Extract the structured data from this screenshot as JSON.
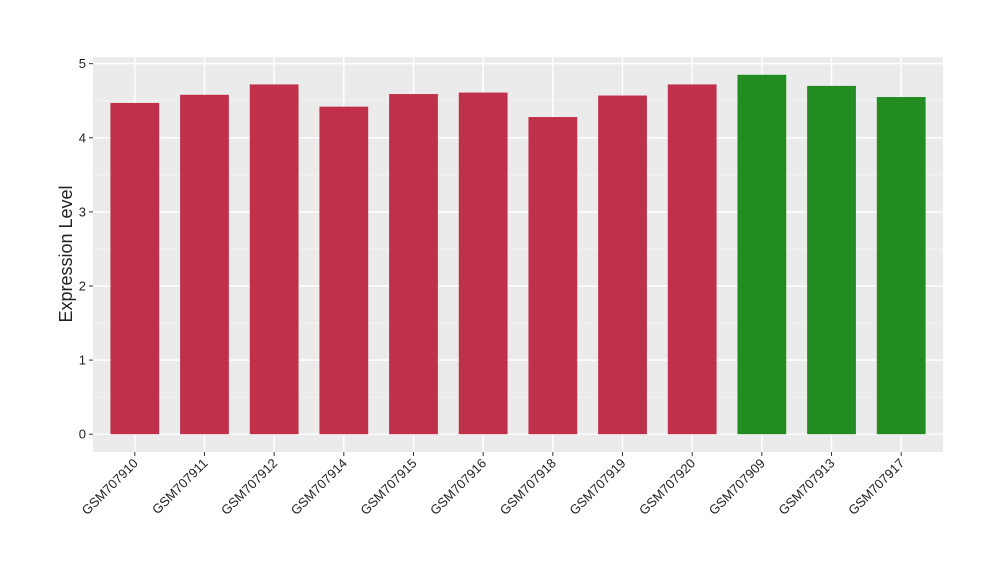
{
  "chart_data": {
    "type": "bar",
    "y_label": "Expression Level",
    "categories": [
      "GSM707910",
      "GSM707911",
      "GSM707912",
      "GSM707914",
      "GSM707915",
      "GSM707916",
      "GSM707918",
      "GSM707919",
      "GSM707920",
      "GSM707909",
      "GSM707913",
      "GSM707917"
    ],
    "values": [
      4.47,
      4.58,
      4.72,
      4.42,
      4.59,
      4.61,
      4.28,
      4.57,
      4.72,
      4.85,
      4.7,
      4.55
    ],
    "colors": [
      "#c0304a",
      "#c0304a",
      "#c0304a",
      "#c0304a",
      "#c0304a",
      "#c0304a",
      "#c0304a",
      "#c0304a",
      "#c0304a",
      "#228b22",
      "#228b22",
      "#228b22"
    ],
    "ylim": [
      -0.24,
      5.09
    ],
    "yticks": [
      0,
      1,
      2,
      3,
      4,
      5
    ],
    "grid": true,
    "minor_grid": true
  }
}
